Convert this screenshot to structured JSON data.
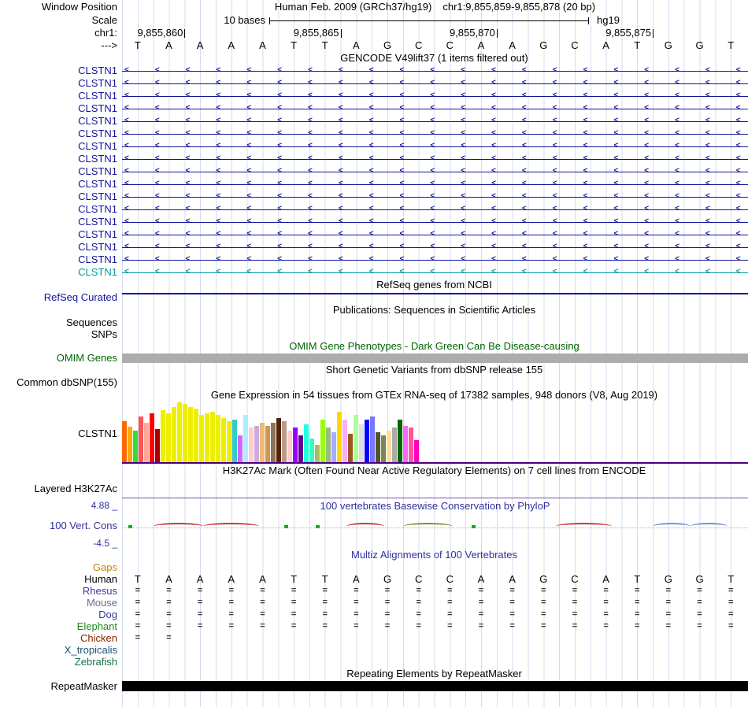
{
  "header": {
    "window_position_label": "Window Position",
    "assembly_title": "Human Feb. 2009 (GRCh37/hg19)",
    "position_title": "chr1:9,855,859-9,855,878 (20 bp)",
    "scale_label": "Scale",
    "scale_text": "10 bases",
    "assembly_short": "hg19",
    "chrom_label": "chr1:",
    "strand_label": "--->",
    "coordinates": [
      {
        "label": "9,855,860",
        "tick_base": 2
      },
      {
        "label": "9,855,865",
        "tick_base": 7
      },
      {
        "label": "9,855,870",
        "tick_base": 12
      },
      {
        "label": "9,855,875",
        "tick_base": 17
      }
    ],
    "sequence": [
      "T",
      "A",
      "A",
      "A",
      "A",
      "T",
      "T",
      "A",
      "G",
      "C",
      "C",
      "A",
      "A",
      "G",
      "C",
      "A",
      "T",
      "G",
      "G",
      "T"
    ]
  },
  "gencode": {
    "title": "GENCODE V49lift37 (1 items filtered out)",
    "arrow_char": "<",
    "rows": [
      {
        "label": "CLSTN1",
        "color": "#14149B"
      },
      {
        "label": "CLSTN1",
        "color": "#14149B"
      },
      {
        "label": "CLSTN1",
        "color": "#14149B"
      },
      {
        "label": "CLSTN1",
        "color": "#14149B"
      },
      {
        "label": "CLSTN1",
        "color": "#14149B"
      },
      {
        "label": "CLSTN1",
        "color": "#14149B"
      },
      {
        "label": "CLSTN1",
        "color": "#14149B"
      },
      {
        "label": "CLSTN1",
        "color": "#14149B"
      },
      {
        "label": "CLSTN1",
        "color": "#14149B"
      },
      {
        "label": "CLSTN1",
        "color": "#14149B"
      },
      {
        "label": "CLSTN1",
        "color": "#14149B"
      },
      {
        "label": "CLSTN1",
        "color": "#14149B"
      },
      {
        "label": "CLSTN1",
        "color": "#14149B"
      },
      {
        "label": "CLSTN1",
        "color": "#14149B"
      },
      {
        "label": "CLSTN1",
        "color": "#14149B"
      },
      {
        "label": "CLSTN1",
        "color": "#14149B"
      },
      {
        "label": "CLSTN1",
        "color": "#009B9B"
      }
    ]
  },
  "refseq": {
    "title": "RefSeq genes from NCBI",
    "label": "RefSeq Curated",
    "label_color": "#14149B",
    "line_color": "#14149B"
  },
  "publications": {
    "title": "Publications: Sequences in Scientific Articles",
    "sequences_label": "Sequences",
    "snps_label": "SNPs"
  },
  "omim": {
    "title": "OMIM Gene Phenotypes - Dark Green Can Be Disease-causing",
    "title_color": "#006400",
    "label": "OMIM Genes",
    "label_color": "#006400",
    "bar_color": "#ACACAC"
  },
  "dbsnp": {
    "title": "Short Genetic Variants from dbSNP release 155",
    "label": "Common dbSNP(155)"
  },
  "gtex": {
    "title": "Gene Expression in 54 tissues from GTEx RNA-seq of 17382 samples, 948 donors (V8, Aug 2019)",
    "label": "CLSTN1",
    "baseline_color": "#4B0082",
    "chart": {
      "type": "bar",
      "tissue_count": 54,
      "bars": [
        {
          "h": 52,
          "c": "#FF6600"
        },
        {
          "h": 45,
          "c": "#FFAA00"
        },
        {
          "h": 40,
          "c": "#33DD33"
        },
        {
          "h": 58,
          "c": "#FF5555"
        },
        {
          "h": 50,
          "c": "#FFAA99"
        },
        {
          "h": 62,
          "c": "#FF0000"
        },
        {
          "h": 42,
          "c": "#AA0000"
        },
        {
          "h": 66,
          "c": "#EEEE00"
        },
        {
          "h": 62,
          "c": "#EEEE00"
        },
        {
          "h": 70,
          "c": "#EEEE00"
        },
        {
          "h": 76,
          "c": "#EEEE00"
        },
        {
          "h": 74,
          "c": "#EEEE00"
        },
        {
          "h": 70,
          "c": "#EEEE00"
        },
        {
          "h": 68,
          "c": "#EEEE00"
        },
        {
          "h": 60,
          "c": "#EEEE00"
        },
        {
          "h": 62,
          "c": "#EEEE00"
        },
        {
          "h": 64,
          "c": "#EEEE00"
        },
        {
          "h": 60,
          "c": "#EEEE00"
        },
        {
          "h": 56,
          "c": "#EEEE00"
        },
        {
          "h": 52,
          "c": "#EEEE00"
        },
        {
          "h": 54,
          "c": "#33CCCC"
        },
        {
          "h": 34,
          "c": "#CC66FF"
        },
        {
          "h": 60,
          "c": "#AAEEFF"
        },
        {
          "h": 44,
          "c": "#FFCCCC"
        },
        {
          "h": 46,
          "c": "#CCAADD"
        },
        {
          "h": 50,
          "c": "#EEBB77"
        },
        {
          "h": 46,
          "c": "#CC9955"
        },
        {
          "h": 50,
          "c": "#8B7355"
        },
        {
          "h": 56,
          "c": "#552200"
        },
        {
          "h": 52,
          "c": "#BB9988"
        },
        {
          "h": 40,
          "c": "#FFCCCC"
        },
        {
          "h": 44,
          "c": "#9900FF"
        },
        {
          "h": 34,
          "c": "#660099"
        },
        {
          "h": 48,
          "c": "#22FFDD"
        },
        {
          "h": 30,
          "c": "#33FFC2"
        },
        {
          "h": 22,
          "c": "#AABB66"
        },
        {
          "h": 54,
          "c": "#99FF00"
        },
        {
          "h": 44,
          "c": "#99BB88"
        },
        {
          "h": 38,
          "c": "#AAAAFF"
        },
        {
          "h": 64,
          "c": "#FFD700"
        },
        {
          "h": 54,
          "c": "#FFAAFF"
        },
        {
          "h": 36,
          "c": "#995522"
        },
        {
          "h": 60,
          "c": "#AAFF99"
        },
        {
          "h": 48,
          "c": "#DDDDDD"
        },
        {
          "h": 54,
          "c": "#0000FF"
        },
        {
          "h": 58,
          "c": "#7777FF"
        },
        {
          "h": 38,
          "c": "#555522"
        },
        {
          "h": 34,
          "c": "#778855"
        },
        {
          "h": 40,
          "c": "#FFDD99"
        },
        {
          "h": 44,
          "c": "#AAAAAA"
        },
        {
          "h": 54,
          "c": "#006600"
        },
        {
          "h": 46,
          "c": "#FF66FF"
        },
        {
          "h": 44,
          "c": "#FF5599"
        },
        {
          "h": 28,
          "c": "#FF00BB"
        }
      ]
    }
  },
  "h3k27ac": {
    "title": "H3K27Ac Mark (Often Found Near Active Regulatory Elements) on 7 cell lines from ENCODE",
    "label": "Layered H3K27Ac",
    "baseline_color": "#7B4FA6"
  },
  "phylop": {
    "title": "100 vertebrates Basewise Conservation by PhyloP",
    "title_color": "#30309C",
    "max_label": "4.88 _",
    "min_label": "-4.5 _",
    "label": "100 Vert. Cons",
    "label_color": "#30309C",
    "marks": [
      {
        "type": "tick",
        "base": 0.2,
        "color": "#00B400"
      },
      {
        "type": "arc",
        "start": 1.0,
        "end": 2.6,
        "color": "#C83737"
      },
      {
        "type": "arc",
        "start": 2.6,
        "end": 4.4,
        "color": "#C83737"
      },
      {
        "type": "tick",
        "base": 5.2,
        "color": "#00B400"
      },
      {
        "type": "tick",
        "base": 6.2,
        "color": "#00B400"
      },
      {
        "type": "arc",
        "start": 7.2,
        "end": 8.4,
        "color": "#C83737"
      },
      {
        "type": "arc",
        "start": 9.0,
        "end": 10.6,
        "color": "#8A8A30"
      },
      {
        "type": "tick",
        "base": 11.2,
        "color": "#00B400"
      },
      {
        "type": "arc",
        "start": 13.9,
        "end": 15.7,
        "color": "#C83737"
      },
      {
        "type": "arc",
        "start": 17.0,
        "end": 18.2,
        "color": "#7A8FD1"
      },
      {
        "type": "arc",
        "start": 18.2,
        "end": 19.4,
        "color": "#7A8FD1"
      }
    ]
  },
  "multiz": {
    "title": "Multiz Alignments of 100 Vertebrates",
    "title_color": "#30309C",
    "gaps_label": "Gaps",
    "gaps_color": "#CC8800",
    "human_label": "Human",
    "align_char": "=",
    "species": [
      {
        "label": "Rhesus",
        "color": "#3C3C9E",
        "aligned": [
          1,
          1,
          1,
          1,
          1,
          1,
          1,
          1,
          1,
          1,
          1,
          1,
          1,
          1,
          1,
          1,
          1,
          1,
          1,
          1
        ]
      },
      {
        "label": "Mouse",
        "color": "#6A6A9E",
        "aligned": [
          1,
          1,
          1,
          1,
          1,
          1,
          1,
          1,
          1,
          1,
          1,
          1,
          1,
          1,
          1,
          1,
          1,
          1,
          1,
          1
        ]
      },
      {
        "label": "Dog",
        "color": "#3C3C9E",
        "aligned": [
          1,
          1,
          1,
          1,
          1,
          1,
          1,
          1,
          1,
          1,
          1,
          1,
          1,
          1,
          1,
          1,
          1,
          1,
          1,
          1
        ]
      },
      {
        "label": "Elephant",
        "color": "#228B22",
        "aligned": [
          1,
          1,
          1,
          1,
          1,
          1,
          1,
          1,
          1,
          1,
          1,
          1,
          1,
          1,
          1,
          1,
          1,
          1,
          1,
          1
        ]
      },
      {
        "label": "Chicken",
        "color": "#8B2500",
        "aligned": [
          1,
          1,
          0,
          0,
          0,
          0,
          0,
          0,
          0,
          0,
          0,
          0,
          0,
          0,
          0,
          0,
          0,
          0,
          0,
          0
        ]
      },
      {
        "label": "X_tropicalis",
        "color": "#1A5276",
        "aligned": [
          0,
          0,
          0,
          0,
          0,
          0,
          0,
          0,
          0,
          0,
          0,
          0,
          0,
          0,
          0,
          0,
          0,
          0,
          0,
          0
        ]
      },
      {
        "label": "Zebrafish",
        "color": "#177245",
        "aligned": [
          0,
          0,
          0,
          0,
          0,
          0,
          0,
          0,
          0,
          0,
          0,
          0,
          0,
          0,
          0,
          0,
          0,
          0,
          0,
          0
        ]
      }
    ]
  },
  "repeatmasker": {
    "title": "Repeating Elements by RepeatMasker",
    "label": "RepeatMasker",
    "bar_color": "#000000"
  }
}
